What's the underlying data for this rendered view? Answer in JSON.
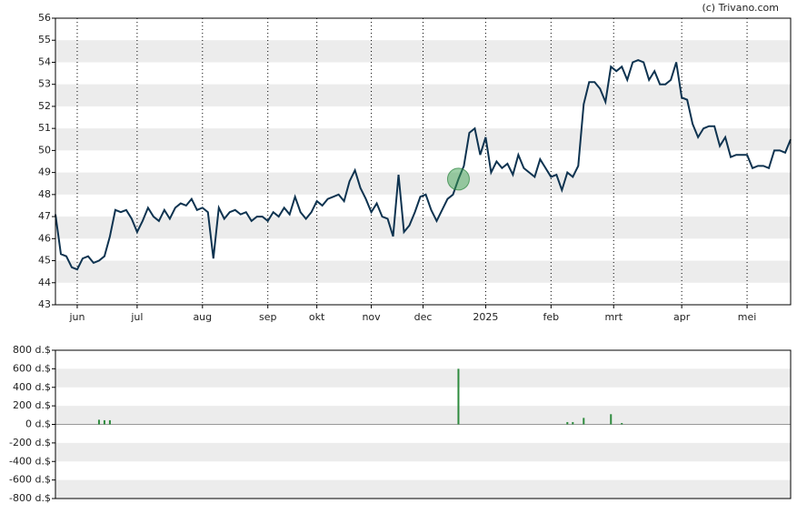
{
  "credit": "(c) Trivano.com",
  "chart_data": [
    {
      "type": "line",
      "xlim": [
        0,
        135
      ],
      "xticks": [
        {
          "value": 4,
          "label": "jun"
        },
        {
          "value": 15,
          "label": "jul"
        },
        {
          "value": 27,
          "label": "aug"
        },
        {
          "value": 39,
          "label": "sep"
        },
        {
          "value": 48,
          "label": "okt"
        },
        {
          "value": 58,
          "label": "nov"
        },
        {
          "value": 67.5,
          "label": "dec"
        },
        {
          "value": 79,
          "label": "2025"
        },
        {
          "value": 91,
          "label": "feb"
        },
        {
          "value": 102.5,
          "label": "mrt"
        },
        {
          "value": 115,
          "label": "apr"
        },
        {
          "value": 127,
          "label": "mei"
        }
      ],
      "ylim": [
        43,
        56
      ],
      "yticks": [
        43,
        44,
        45,
        46,
        47,
        48,
        49,
        50,
        51,
        52,
        53,
        54,
        55,
        56
      ],
      "grid": true,
      "series": [
        {
          "color": "#0e3350",
          "values": [
            47.1,
            45.3,
            45.2,
            44.7,
            44.6,
            45.1,
            45.2,
            44.9,
            45.0,
            45.2,
            46.1,
            47.3,
            47.2,
            47.3,
            46.9,
            46.3,
            46.8,
            47.4,
            47.0,
            46.8,
            47.3,
            46.9,
            47.4,
            47.6,
            47.5,
            47.8,
            47.3,
            47.4,
            47.2,
            45.1,
            47.4,
            46.9,
            47.2,
            47.3,
            47.1,
            47.2,
            46.8,
            47.0,
            47.0,
            46.8,
            47.2,
            47.0,
            47.4,
            47.1,
            47.9,
            47.2,
            46.9,
            47.2,
            47.7,
            47.5,
            47.8,
            47.9,
            48.0,
            47.7,
            48.6,
            49.1,
            48.3,
            47.8,
            47.2,
            47.6,
            47.0,
            46.9,
            46.1,
            48.9,
            46.3,
            46.6,
            47.2,
            47.9,
            48.0,
            47.3,
            46.8,
            47.3,
            47.8,
            48.0,
            48.7,
            49.3,
            50.8,
            51.0,
            49.8,
            50.6,
            49.0,
            49.5,
            49.2,
            49.4,
            48.9,
            49.8,
            49.2,
            49.0,
            48.8,
            49.6,
            49.2,
            48.8,
            48.9,
            48.2,
            49.0,
            48.8,
            49.3,
            52.1,
            53.1,
            53.1,
            52.8,
            52.2,
            53.8,
            53.6,
            53.8,
            53.2,
            54.0,
            54.1,
            54.0,
            53.2,
            53.6,
            53.0,
            53.0,
            53.2,
            54.0,
            52.4,
            52.3,
            51.2,
            50.6,
            51.0,
            51.1,
            51.1,
            50.2,
            50.6,
            49.7,
            49.8,
            49.8,
            49.8,
            49.2,
            49.3,
            49.3,
            49.2,
            50.0,
            50.0,
            49.9,
            50.5
          ]
        }
      ]
    },
    {
      "type": "bar",
      "xlim": [
        0,
        135
      ],
      "x": [
        8,
        9,
        10,
        74,
        94,
        95,
        97,
        102,
        104
      ],
      "values": [
        50,
        45,
        45,
        600,
        25,
        25,
        70,
        110,
        15
      ],
      "color": "#2e8b3e",
      "ylim": [
        -800,
        800
      ],
      "yticks": [
        {
          "value": 800,
          "label": "800 d.$"
        },
        {
          "value": 600,
          "label": "600 d.$"
        },
        {
          "value": 400,
          "label": "400 d.$"
        },
        {
          "value": 200,
          "label": "200 d.$"
        },
        {
          "value": 0,
          "label": "0 d.$"
        },
        {
          "value": -200,
          "label": "-200 d.$"
        },
        {
          "value": -400,
          "label": "-400 d.$"
        },
        {
          "value": -600,
          "label": "-600 d.$"
        },
        {
          "value": -800,
          "label": "-800 d.$"
        }
      ],
      "grid": true
    }
  ]
}
